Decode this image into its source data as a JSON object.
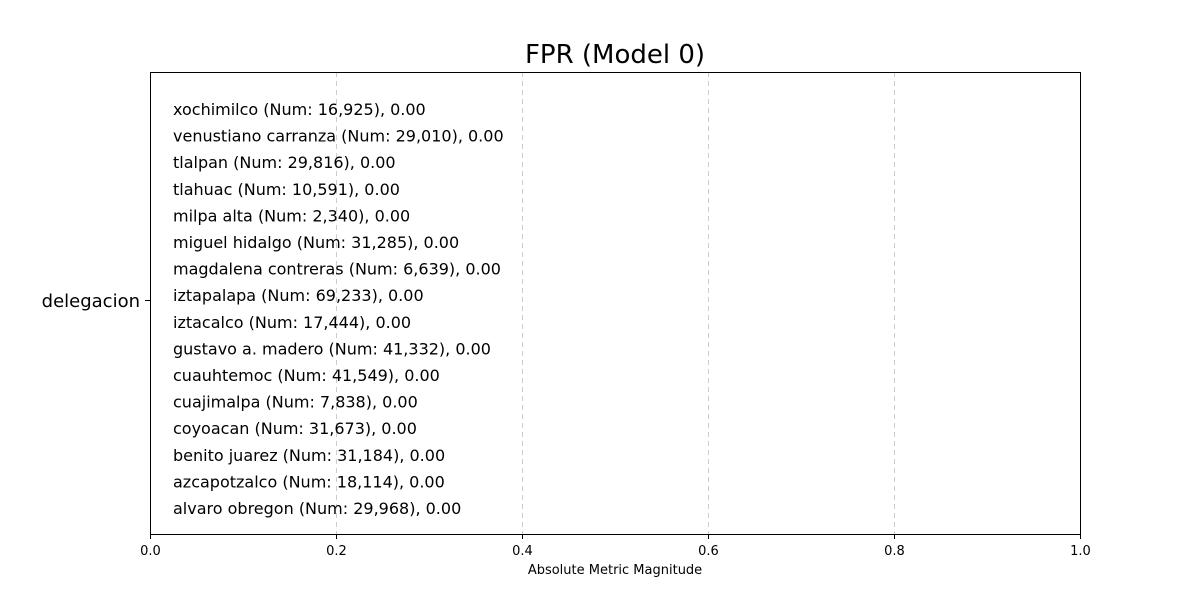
{
  "chart_data": {
    "type": "bar",
    "orientation": "horizontal",
    "title": "FPR (Model 0)",
    "xlabel": "Absolute Metric Magnitude",
    "ylabel": "",
    "group_label": "delegacion",
    "xlim": [
      0.0,
      1.0
    ],
    "x_ticks": [
      "0.0",
      "0.2",
      "0.4",
      "0.6",
      "0.8",
      "1.0"
    ],
    "grid": "x dashed",
    "categories": [
      "xochimilco",
      "venustiano carranza",
      "tlalpan",
      "tlahuac",
      "milpa alta",
      "miguel hidalgo",
      "magdalena contreras",
      "iztapalapa",
      "iztacalco",
      "gustavo a. madero",
      "cuauhtemoc",
      "cuajimalpa",
      "coyoacan",
      "benito juarez",
      "azcapotzalco",
      "alvaro obregon"
    ],
    "counts": [
      "16,925",
      "29,010",
      "29,816",
      "10,591",
      "2,340",
      "31,285",
      "6,639",
      "69,233",
      "17,444",
      "41,332",
      "41,549",
      "7,838",
      "31,673",
      "31,184",
      "18,114",
      "29,968"
    ],
    "values": [
      0.0,
      0.0,
      0.0,
      0.0,
      0.0,
      0.0,
      0.0,
      0.0,
      0.0,
      0.0,
      0.0,
      0.0,
      0.0,
      0.0,
      0.0,
      0.0
    ],
    "bar_labels": [
      "xochimilco (Num: 16,925), 0.00",
      "venustiano carranza (Num: 29,010), 0.00",
      "tlalpan (Num: 29,816), 0.00",
      "tlahuac (Num: 10,591), 0.00",
      "milpa alta (Num: 2,340), 0.00",
      "miguel hidalgo (Num: 31,285), 0.00",
      "magdalena contreras (Num: 6,639), 0.00",
      "iztapalapa (Num: 69,233), 0.00",
      "iztacalco (Num: 17,444), 0.00",
      "gustavo a. madero (Num: 41,332), 0.00",
      "cuauhtemoc (Num: 41,549), 0.00",
      "cuajimalpa (Num: 7,838), 0.00",
      "coyoacan (Num: 31,673), 0.00",
      "benito juarez (Num: 31,184), 0.00",
      "azcapotzalco (Num: 18,114), 0.00",
      "alvaro obregon (Num: 29,968), 0.00"
    ],
    "colors": {
      "bar": "#1f77b4",
      "grid": "#cccccc",
      "frame": "#000000",
      "text": "#000000"
    }
  }
}
